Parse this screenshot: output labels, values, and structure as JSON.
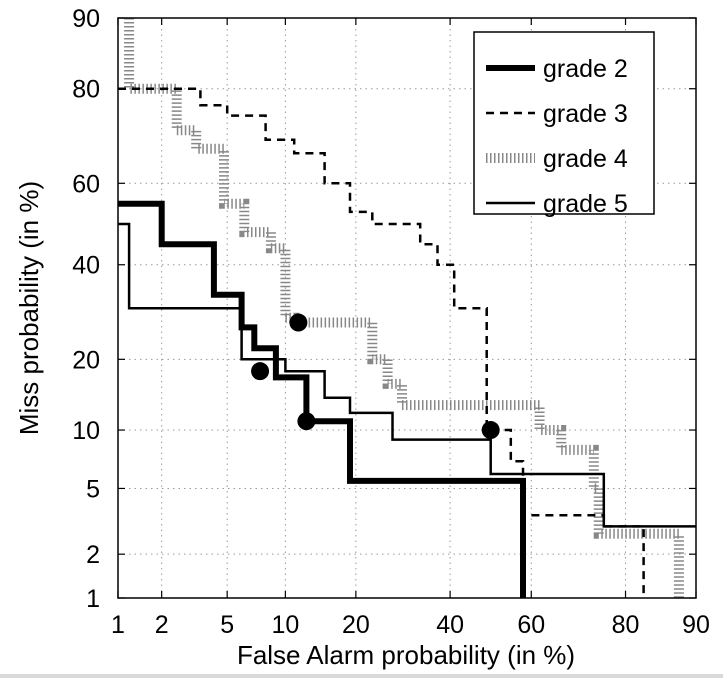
{
  "chart_data": {
    "type": "line",
    "title": "",
    "xlabel": "False Alarm probability (in %)",
    "ylabel": "Miss probability (in %)",
    "scale": "normal-deviate (DET)",
    "xlim": [
      1,
      90
    ],
    "ylim": [
      1,
      90
    ],
    "x_ticks": [
      1,
      2,
      5,
      10,
      20,
      40,
      60,
      80,
      90
    ],
    "y_ticks": [
      1,
      2,
      5,
      10,
      20,
      40,
      60,
      80,
      90
    ],
    "grid": true,
    "legend_position": "top-right",
    "series": [
      {
        "name": "grade 2",
        "style": "thick-solid",
        "color": "#000000",
        "points": [
          [
            1,
            55
          ],
          [
            2,
            55
          ],
          [
            2,
            45
          ],
          [
            4.2,
            45
          ],
          [
            4.2,
            33
          ],
          [
            6,
            33
          ],
          [
            6,
            26
          ],
          [
            7,
            26
          ],
          [
            7,
            22
          ],
          [
            9,
            22
          ],
          [
            9,
            17
          ],
          [
            12.5,
            17
          ],
          [
            12.5,
            11
          ],
          [
            19,
            11
          ],
          [
            19,
            5.5
          ],
          [
            58,
            5.5
          ],
          [
            58,
            1
          ]
        ],
        "marker": [
          12.5,
          11
        ]
      },
      {
        "name": "grade 3",
        "style": "dashed",
        "color": "#000000",
        "points": [
          [
            1,
            80
          ],
          [
            3.5,
            80
          ],
          [
            3.5,
            77
          ],
          [
            5,
            77
          ],
          [
            5,
            75
          ],
          [
            8,
            75
          ],
          [
            8,
            70
          ],
          [
            11,
            70
          ],
          [
            11,
            67
          ],
          [
            15,
            67
          ],
          [
            15,
            60
          ],
          [
            19,
            60
          ],
          [
            19,
            53
          ],
          [
            23,
            53
          ],
          [
            23,
            50
          ],
          [
            33,
            50
          ],
          [
            33,
            45
          ],
          [
            37,
            45
          ],
          [
            37,
            40
          ],
          [
            41,
            40
          ],
          [
            41,
            30
          ],
          [
            49,
            30
          ],
          [
            49,
            10
          ],
          [
            55,
            10
          ],
          [
            55,
            7
          ],
          [
            58,
            7
          ],
          [
            58,
            3.5
          ],
          [
            76,
            3.5
          ],
          [
            76,
            3
          ],
          [
            83,
            3
          ],
          [
            83,
            1
          ]
        ],
        "marker": [
          50,
          10
        ]
      },
      {
        "name": "grade 4",
        "style": "dotted",
        "color": "#888888",
        "points": [
          [
            1.2,
            90
          ],
          [
            1.2,
            80
          ],
          [
            2.5,
            80
          ],
          [
            2.5,
            72
          ],
          [
            3.3,
            72
          ],
          [
            3.3,
            68
          ],
          [
            4.8,
            68
          ],
          [
            4.8,
            55
          ],
          [
            6.2,
            55
          ],
          [
            6.2,
            48
          ],
          [
            8.5,
            48
          ],
          [
            8.5,
            44
          ],
          [
            10,
            44
          ],
          [
            10,
            28
          ],
          [
            11,
            28
          ],
          [
            11,
            27
          ],
          [
            23,
            27
          ],
          [
            23,
            20
          ],
          [
            26,
            20
          ],
          [
            26,
            16
          ],
          [
            29,
            16
          ],
          [
            29,
            13
          ],
          [
            62,
            13
          ],
          [
            62,
            10
          ],
          [
            67,
            10
          ],
          [
            67,
            8
          ],
          [
            74,
            8
          ],
          [
            74,
            5
          ],
          [
            75,
            5
          ],
          [
            75,
            2.7
          ],
          [
            88,
            2.7
          ],
          [
            88,
            1
          ]
        ],
        "marker": [
          11.5,
          27
        ]
      },
      {
        "name": "grade 5",
        "style": "thin-solid",
        "color": "#000000",
        "points": [
          [
            1,
            50
          ],
          [
            1.2,
            50
          ],
          [
            1.2,
            30
          ],
          [
            6,
            30
          ],
          [
            6,
            20
          ],
          [
            10,
            20
          ],
          [
            10,
            18
          ],
          [
            15,
            18
          ],
          [
            15,
            14
          ],
          [
            19,
            14
          ],
          [
            19,
            12
          ],
          [
            27,
            12
          ],
          [
            27,
            9
          ],
          [
            50,
            9
          ],
          [
            50,
            6
          ],
          [
            76,
            6
          ],
          [
            76,
            3
          ],
          [
            90,
            3
          ]
        ],
        "marker": [
          7.5,
          18
        ]
      }
    ]
  }
}
